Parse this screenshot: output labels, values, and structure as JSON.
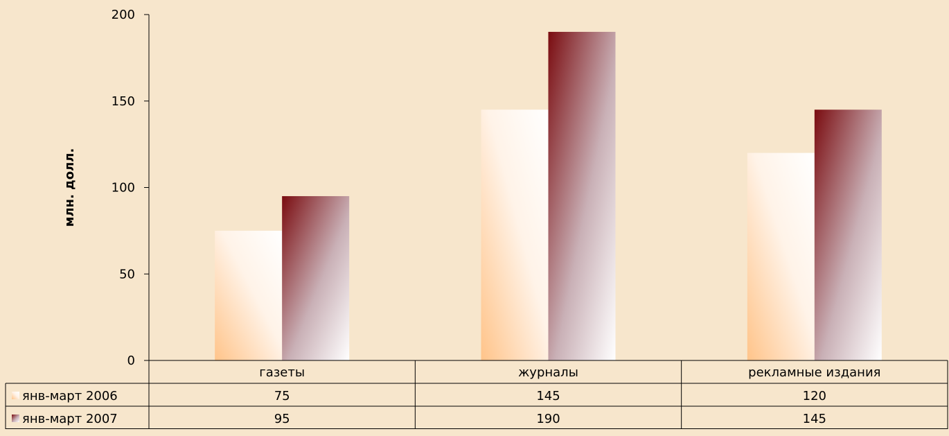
{
  "chart_data": {
    "type": "bar",
    "title": "",
    "xlabel": "",
    "ylabel": "млн. долл.",
    "ylim": [
      0,
      200
    ],
    "yticks": [
      0,
      50,
      100,
      150,
      200
    ],
    "grid": false,
    "legend": "data-table",
    "categories": [
      "газеты",
      "журналы",
      "рекламные издания"
    ],
    "series": [
      {
        "name": "янв-март 2006",
        "values": [
          75,
          145,
          120
        ],
        "color": "#ffcc99"
      },
      {
        "name": "янв-март 2007",
        "values": [
          95,
          190,
          145
        ],
        "color": "#7a0c10"
      }
    ]
  }
}
